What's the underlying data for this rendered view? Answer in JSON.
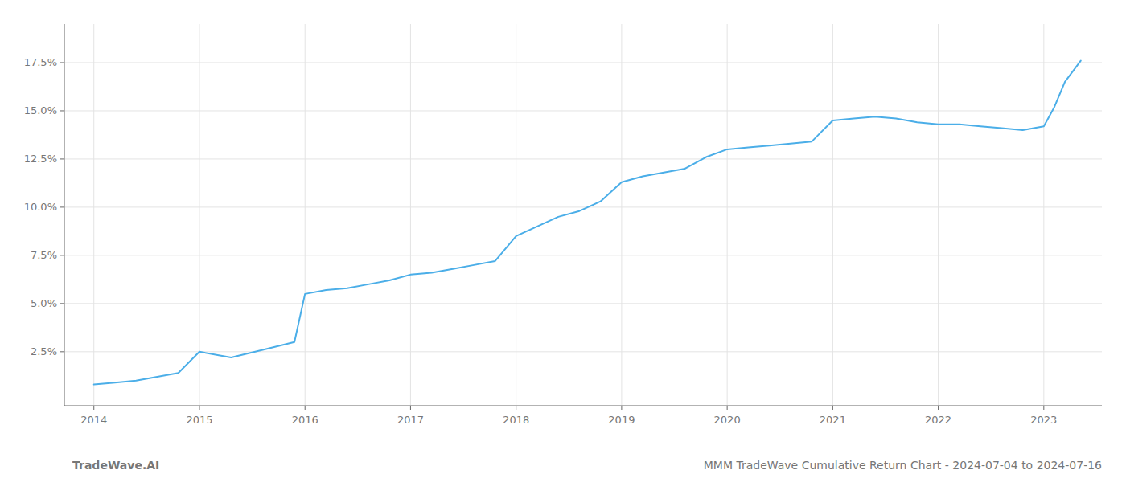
{
  "chart_data": {
    "type": "line",
    "title": "MMM TradeWave Cumulative Return Chart - 2024-07-04 to 2024-07-16",
    "annotations": [
      "TradeWave.AI"
    ],
    "x": [
      2014.0,
      2014.2,
      2014.4,
      2014.6,
      2014.8,
      2015.0,
      2015.3,
      2015.6,
      2015.9,
      2016.0,
      2016.2,
      2016.4,
      2016.6,
      2016.8,
      2017.0,
      2017.2,
      2017.4,
      2017.6,
      2017.8,
      2018.0,
      2018.2,
      2018.4,
      2018.6,
      2018.8,
      2019.0,
      2019.2,
      2019.4,
      2019.6,
      2019.8,
      2020.0,
      2020.2,
      2020.4,
      2020.6,
      2020.8,
      2021.0,
      2021.2,
      2021.4,
      2021.6,
      2021.8,
      2022.0,
      2022.2,
      2022.4,
      2022.6,
      2022.8,
      2023.0,
      2023.1,
      2023.2,
      2023.35
    ],
    "values": [
      0.008,
      0.009,
      0.01,
      0.012,
      0.014,
      0.025,
      0.022,
      0.026,
      0.03,
      0.055,
      0.057,
      0.058,
      0.06,
      0.062,
      0.065,
      0.066,
      0.068,
      0.07,
      0.072,
      0.085,
      0.09,
      0.095,
      0.098,
      0.103,
      0.113,
      0.116,
      0.118,
      0.12,
      0.126,
      0.13,
      0.131,
      0.132,
      0.133,
      0.134,
      0.145,
      0.146,
      0.147,
      0.146,
      0.144,
      0.143,
      0.143,
      0.142,
      0.141,
      0.14,
      0.142,
      0.152,
      0.165,
      0.176
    ],
    "color": "#4baee8",
    "xlim": [
      2013.72,
      2023.55
    ],
    "ylim": [
      -0.003,
      0.195
    ],
    "xticks": [
      2014,
      2015,
      2016,
      2017,
      2018,
      2019,
      2020,
      2021,
      2022,
      2023
    ],
    "yticks": [
      {
        "value": 0.025,
        "label": "2.5%"
      },
      {
        "value": 0.05,
        "label": "5.0%"
      },
      {
        "value": 0.075,
        "label": "7.5%"
      },
      {
        "value": 0.1,
        "label": "10.0%"
      },
      {
        "value": 0.125,
        "label": "12.5%"
      },
      {
        "value": 0.15,
        "label": "15.0%"
      },
      {
        "value": 0.175,
        "label": "17.5%"
      }
    ],
    "grid": true
  }
}
